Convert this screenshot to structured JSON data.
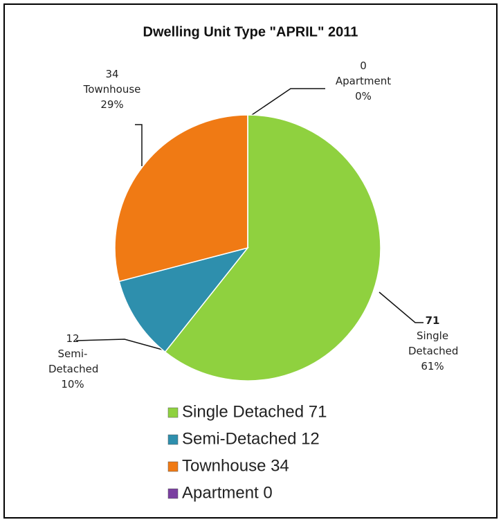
{
  "chart_data": {
    "type": "pie",
    "title": "Dwelling Unit Type \"APRIL\" 2011",
    "categories": [
      "Single Detached",
      "Semi-Detached",
      "Townhouse",
      "Apartment"
    ],
    "values": [
      71,
      12,
      34,
      0
    ],
    "percent_labels": [
      "61%",
      "10%",
      "29%",
      "0%"
    ],
    "legend_labels": [
      "Single Detached 71",
      "Semi-Detached 12",
      "Townhouse 34",
      "Apartment 0"
    ],
    "colors": [
      "#8fd13f",
      "#2e8fad",
      "#f07a14",
      "#7a3fa0"
    ]
  }
}
